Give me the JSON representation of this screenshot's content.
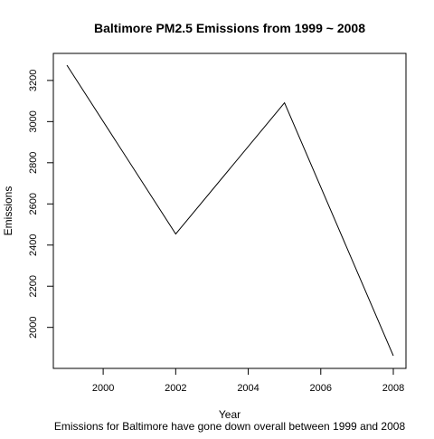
{
  "chart_data": {
    "type": "line",
    "title": "Baltimore PM2.5 Emissions from 1999 ~ 2008",
    "xlabel": "Year",
    "ylabel": "Emissions",
    "subtitle": "Emissions for Baltimore have gone down overall between 1999 and 2008",
    "x": [
      1999,
      2002,
      2005,
      2008
    ],
    "series": [
      {
        "values": [
          3274.18,
          2453.92,
          3091.35,
          1862.28
        ]
      }
    ],
    "xlim": [
      1999,
      2008
    ],
    "ylim": [
      1862.28,
      3274.18
    ],
    "x_ticks": [
      2000,
      2002,
      2004,
      2006,
      2008
    ],
    "y_ticks": [
      2000,
      2200,
      2400,
      2600,
      2800,
      3000,
      3200
    ],
    "grid": false,
    "line_color": "#000000"
  }
}
